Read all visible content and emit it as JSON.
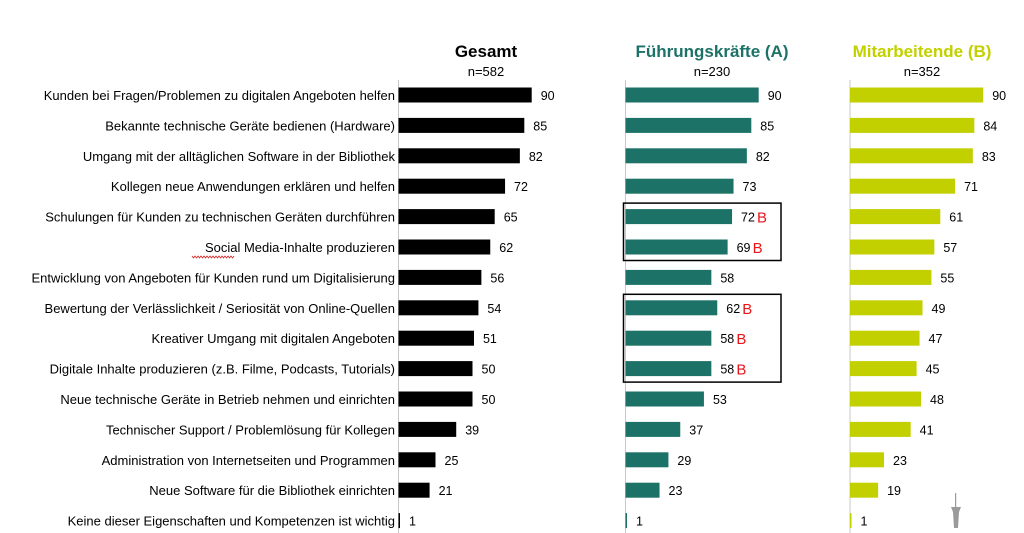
{
  "chart_data": {
    "type": "bar",
    "orientation": "horizontal",
    "categories": [
      "Kunden bei Fragen/Problemen zu digitalen Angeboten helfen",
      "Bekannte technische Geräte bedienen (Hardware)",
      "Umgang mit der alltäglichen Software in der Bibliothek",
      "Kollegen neue Anwendungen erklären und helfen",
      "Schulungen für Kunden zu technischen Geräten durchführen",
      "Social Media-Inhalte produzieren",
      "Entwicklung von Angeboten für Kunden rund um Digitalisierung",
      "Bewertung der Verlässlichkeit / Seriosität von Online-Quellen",
      "Kreativer Umgang mit digitalen Angeboten",
      "Digitale Inhalte produzieren (z.B. Filme, Podcasts, Tutorials)",
      "Neue technische Geräte in Betrieb nehmen und einrichten",
      "Technischer Support / Problemlösung für Kollegen",
      "Administration von Internetseiten und Programmen",
      "Neue Software für die Bibliothek einrichten",
      "Keine dieser Eigenschaften und Kompetenzen ist wichtig"
    ],
    "series": [
      {
        "name": "Gesamt",
        "n_label": "n=582",
        "color": "#000000",
        "values": [
          90,
          85,
          82,
          72,
          65,
          62,
          56,
          54,
          51,
          50,
          50,
          39,
          25,
          21,
          1
        ]
      },
      {
        "name": "Führungskräfte (A)",
        "n_label": "n=230",
        "color": "#1c7267",
        "values": [
          90,
          85,
          82,
          73,
          72,
          69,
          58,
          62,
          58,
          58,
          53,
          37,
          29,
          23,
          1
        ],
        "markers": [
          "",
          "",
          "",
          "",
          "B",
          "B",
          "",
          "B",
          "B",
          "B",
          "",
          "",
          "",
          "",
          ""
        ]
      },
      {
        "name": "Mitarbeitende (B)",
        "n_label": "n=352",
        "color": "#c3d000",
        "values": [
          90,
          84,
          83,
          71,
          61,
          57,
          55,
          49,
          47,
          45,
          48,
          41,
          23,
          19,
          1
        ]
      }
    ],
    "highlight_boxes": [
      {
        "series": "Führungskräfte (A)",
        "from_category": 4,
        "to_category": 5
      },
      {
        "series": "Führungskräfte (A)",
        "from_category": 7,
        "to_category": 9
      }
    ],
    "xlim": [
      0,
      100
    ],
    "grid": false,
    "legend": "column headers"
  }
}
